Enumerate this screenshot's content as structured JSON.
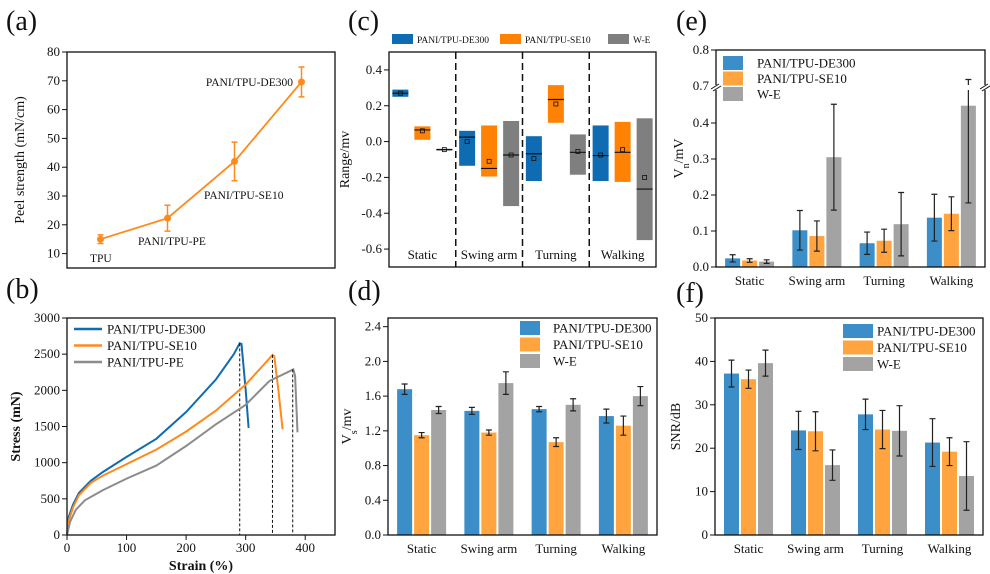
{
  "colors": {
    "blue_dark": "#0f6cb3",
    "orange_dark": "#ff8205",
    "gray_dark": "#7f7f7f",
    "blue": "#3b8ec8",
    "orange": "#ffa43f",
    "gray": "#a3a3a3",
    "line_orange": "#ff8a1c",
    "line_gray": "#8c8c8c"
  },
  "chart_data": [
    {
      "panel_label": "(a)",
      "type": "line",
      "categories": [
        "TPU",
        "PANI/TPU-PE",
        "PANI/TPU-SE10",
        "PANI/TPU-DE300"
      ],
      "values": [
        15.0,
        22.3,
        42.0,
        69.6
      ],
      "errors": [
        1.5,
        4.5,
        6.7,
        5.2
      ],
      "annotations": [
        "TPU",
        "PANI/TPU-PE",
        "PANI/TPU-SE10",
        "PANI/TPU-DE300"
      ],
      "xlabel": "",
      "ylabel": "Peel strength (mN/cm)",
      "ylim": [
        5,
        80
      ],
      "yticks": [
        "10",
        "20",
        "30",
        "40",
        "50",
        "60",
        "70",
        "80"
      ]
    },
    {
      "panel_label": "(b)",
      "type": "line",
      "xlabel": "Strain (%)",
      "ylabel": "Stress (mN)",
      "xlim": [
        0,
        450
      ],
      "ylim": [
        0,
        3000
      ],
      "xticks": [
        "0",
        "100",
        "200",
        "300",
        "400"
      ],
      "yticks": [
        "0",
        "500",
        "1000",
        "1500",
        "2000",
        "2500",
        "3000"
      ],
      "legend": "top-left",
      "series": [
        {
          "name": "PANI/TPU-DE300",
          "x": [
            0,
            3,
            10,
            20,
            40,
            60,
            100,
            150,
            200,
            250,
            280,
            290,
            293,
            300,
            305
          ],
          "y": [
            0,
            250,
            420,
            580,
            750,
            870,
            1080,
            1330,
            1700,
            2150,
            2500,
            2650,
            2640,
            2000,
            1480
          ],
          "break_strain": 290
        },
        {
          "name": "PANI/TPU-SE10",
          "x": [
            0,
            3,
            10,
            20,
            40,
            60,
            100,
            150,
            200,
            250,
            300,
            330,
            345,
            348,
            355,
            362
          ],
          "y": [
            0,
            200,
            380,
            550,
            720,
            820,
            980,
            1180,
            1430,
            1720,
            2080,
            2350,
            2490,
            2470,
            2000,
            1460
          ],
          "break_strain": 345
        },
        {
          "name": "PANI/TPU-PE",
          "x": [
            0,
            5,
            15,
            30,
            60,
            100,
            150,
            200,
            250,
            300,
            340,
            370,
            380,
            383,
            387
          ],
          "y": [
            0,
            180,
            350,
            480,
            620,
            780,
            960,
            1230,
            1530,
            1800,
            2130,
            2250,
            2290,
            2200,
            1420
          ],
          "break_strain": 379
        }
      ]
    },
    {
      "panel_label": "(c)",
      "type": "box",
      "categories": [
        "Static",
        "Swing arm",
        "Turning",
        "Walking"
      ],
      "ylabel": "Range/mv",
      "ylim": [
        -0.7,
        0.5
      ],
      "yticks": [
        "-0.6",
        "-0.4",
        "-0.2",
        "0.0",
        "0.2",
        "0.4"
      ],
      "legend": "top-outside",
      "series": [
        {
          "name": "PANI/TPU-DE300",
          "low": [
            0.25,
            -0.135,
            -0.22,
            -0.22
          ],
          "high": [
            0.29,
            0.06,
            0.03,
            0.09
          ],
          "median": [
            0.27,
            0.025,
            -0.068,
            -0.078
          ],
          "mean": [
            0.27,
            0.0,
            -0.095,
            -0.075
          ]
        },
        {
          "name": "PANI/TPU-SE10",
          "low": [
            0.01,
            -0.195,
            0.105,
            -0.225
          ],
          "high": [
            0.085,
            0.09,
            0.315,
            0.11
          ],
          "median": [
            0.065,
            -0.15,
            0.235,
            -0.06
          ],
          "mean": [
            0.06,
            -0.11,
            0.21,
            -0.045
          ]
        },
        {
          "name": "W-E",
          "low": [
            -0.05,
            -0.36,
            -0.185,
            -0.55
          ],
          "high": [
            -0.04,
            0.115,
            0.04,
            0.13
          ],
          "median": [
            -0.045,
            -0.075,
            -0.06,
            -0.265
          ],
          "mean": [
            -0.045,
            -0.075,
            -0.055,
            -0.2
          ]
        }
      ]
    },
    {
      "panel_label": "(d)",
      "type": "bar",
      "categories": [
        "Static",
        "Swing arm",
        "Turning",
        "Walking"
      ],
      "ylabel_parts": [
        "V",
        "s",
        "/mv"
      ],
      "ylim": [
        0,
        2.5
      ],
      "yticks": [
        "0.0",
        "0.4",
        "0.8",
        "1.2",
        "1.6",
        "2.0",
        "2.4"
      ],
      "legend": "top-right",
      "series": [
        {
          "name": "PANI/TPU-DE300",
          "values": [
            1.68,
            1.43,
            1.45,
            1.37
          ],
          "errors": [
            0.06,
            0.04,
            0.03,
            0.08
          ]
        },
        {
          "name": "PANI/TPU-SE10",
          "values": [
            1.15,
            1.18,
            1.07,
            1.26
          ],
          "errors": [
            0.03,
            0.03,
            0.05,
            0.11
          ]
        },
        {
          "name": "W-E",
          "values": [
            1.44,
            1.75,
            1.5,
            1.6
          ],
          "errors": [
            0.04,
            0.13,
            0.07,
            0.11
          ]
        }
      ]
    },
    {
      "panel_label": "(e)",
      "type": "bar",
      "categories": [
        "Static",
        "Swing arm",
        "Turning",
        "Walking"
      ],
      "ylabel_parts": [
        "V",
        "n",
        "/mV"
      ],
      "ylim": [
        0,
        0.8
      ],
      "axis_break": [
        0.5,
        0.7
      ],
      "yticks": [
        "0.0",
        "0.1",
        "0.2",
        "0.3",
        "0.4",
        "0.7",
        "0.8"
      ],
      "legend": "top-left",
      "series": [
        {
          "name": "PANI/TPU-DE300",
          "values": [
            0.024,
            0.102,
            0.066,
            0.137
          ],
          "errors": [
            0.01,
            0.055,
            0.031,
            0.065
          ]
        },
        {
          "name": "PANI/TPU-SE10",
          "values": [
            0.018,
            0.086,
            0.073,
            0.148
          ],
          "errors": [
            0.005,
            0.042,
            0.032,
            0.047
          ]
        },
        {
          "name": "W-E",
          "values": [
            0.015,
            0.305,
            0.119,
            0.448
          ],
          "errors": [
            0.005,
            0.147,
            0.088,
            0.27
          ]
        }
      ]
    },
    {
      "panel_label": "(f)",
      "type": "bar",
      "categories": [
        "Static",
        "Swing arm",
        "Turning",
        "Walking"
      ],
      "ylabel": "SNR/dB",
      "ylim": [
        0,
        50
      ],
      "yticks": [
        "0",
        "10",
        "20",
        "30",
        "40",
        "50"
      ],
      "legend": "top-right",
      "series": [
        {
          "name": "PANI/TPU-DE300",
          "values": [
            37.2,
            24.1,
            27.8,
            21.3
          ],
          "errors": [
            3.1,
            4.4,
            3.5,
            5.5
          ]
        },
        {
          "name": "PANI/TPU-SE10",
          "values": [
            35.9,
            23.9,
            24.3,
            19.2
          ],
          "errors": [
            2.1,
            4.5,
            4.4,
            3.2
          ]
        },
        {
          "name": "W-E",
          "values": [
            39.6,
            16.1,
            24.0,
            13.6
          ],
          "errors": [
            3.0,
            3.5,
            5.8,
            7.9
          ]
        }
      ]
    }
  ]
}
